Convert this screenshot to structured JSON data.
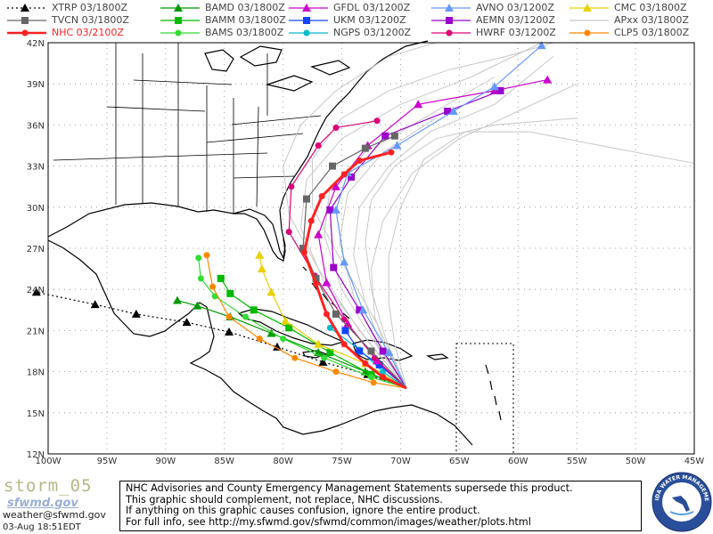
{
  "legend": [
    {
      "label": "XTRP  03/1800Z",
      "color": "#000000",
      "marker": "triangle",
      "line": "dotted"
    },
    {
      "label": "BAMD  03/1800Z",
      "color": "#009900",
      "marker": "triangle",
      "line": "solid"
    },
    {
      "label": "GFDL  03/1200Z",
      "color": "#cc00cc",
      "marker": "triangle",
      "line": "solid"
    },
    {
      "label": "AVNO  03/1200Z",
      "color": "#6699ff",
      "marker": "triangle",
      "line": "solid"
    },
    {
      "label": "CMC  03/1800Z",
      "color": "#e8d200",
      "marker": "triangle",
      "line": "solid"
    },
    {
      "label": "TVCN  03/1800Z",
      "color": "#666666",
      "marker": "square",
      "line": "solid"
    },
    {
      "label": "BAMM  03/1800Z",
      "color": "#00bb00",
      "marker": "square",
      "line": "solid"
    },
    {
      "label": "UKM  03/1200Z",
      "color": "#1144ff",
      "marker": "square",
      "line": "solid"
    },
    {
      "label": "AEMN  03/1200Z",
      "color": "#9900cc",
      "marker": "square",
      "line": "solid"
    },
    {
      "label": "APxx  03/1800Z",
      "color": "#c8c8c8",
      "marker": "none",
      "line": "solid"
    },
    {
      "label": "NHC  03/2100Z",
      "color": "#ff2222",
      "marker": "circle",
      "line": "solid"
    },
    {
      "label": "BAMS  03/1800Z",
      "color": "#33dd33",
      "marker": "circle",
      "line": "solid"
    },
    {
      "label": "NGPS  03/1200Z",
      "color": "#00bbcc",
      "marker": "circle",
      "line": "solid"
    },
    {
      "label": "HWRF  03/1200Z",
      "color": "#dd0077",
      "marker": "circle",
      "line": "solid"
    },
    {
      "label": "CLP5  03/1800Z",
      "color": "#ff8800",
      "marker": "circle",
      "line": "solid"
    }
  ],
  "axes": {
    "lon_labels": [
      "100W",
      "95W",
      "90W",
      "85W",
      "80W",
      "75W",
      "70W",
      "65W",
      "60W",
      "55W",
      "50W",
      "45W"
    ],
    "lon_values": [
      -100,
      -95,
      -90,
      -85,
      -80,
      -75,
      -70,
      -65,
      -60,
      -55,
      -50,
      -45
    ],
    "lat_labels": [
      "12N",
      "15N",
      "18N",
      "21N",
      "24N",
      "27N",
      "30N",
      "33N",
      "36N",
      "39N",
      "42N"
    ],
    "lat_values": [
      12,
      15,
      18,
      21,
      24,
      27,
      30,
      33,
      36,
      39,
      42
    ]
  },
  "tracks": [
    {
      "model": "XTRP",
      "color": "#000000",
      "dash": "2,3",
      "marker": "triangle",
      "points": [
        [
          -69.5,
          16.8
        ],
        [
          -72.8,
          17.8
        ],
        [
          -76.6,
          18.7
        ],
        [
          -80.5,
          19.8
        ],
        [
          -84.6,
          20.9
        ],
        [
          -88.2,
          21.6
        ],
        [
          -92.5,
          22.2
        ],
        [
          -96.0,
          22.9
        ],
        [
          -101,
          23.8
        ]
      ]
    },
    {
      "model": "BAMD",
      "color": "#009900",
      "marker": "triangle",
      "points": [
        [
          -69.5,
          16.8
        ],
        [
          -73,
          18
        ],
        [
          -77,
          19.4
        ],
        [
          -81,
          20.8
        ],
        [
          -84.5,
          22
        ],
        [
          -87.3,
          22.8
        ],
        [
          -89,
          23.2
        ]
      ]
    },
    {
      "model": "BAMM",
      "color": "#00bb00",
      "marker": "square",
      "points": [
        [
          -69.5,
          16.8
        ],
        [
          -72.5,
          17.8
        ],
        [
          -76,
          19.4
        ],
        [
          -79.5,
          21.2
        ],
        [
          -82.5,
          22.5
        ],
        [
          -84.5,
          23.7
        ],
        [
          -85.3,
          24.8
        ]
      ]
    },
    {
      "model": "BAMS",
      "color": "#33dd33",
      "marker": "circle",
      "points": [
        [
          -69.5,
          16.8
        ],
        [
          -72.5,
          17.6
        ],
        [
          -76.5,
          19
        ],
        [
          -80,
          20.4
        ],
        [
          -83.2,
          22
        ],
        [
          -85.8,
          23.5
        ],
        [
          -87,
          24.8
        ],
        [
          -87.2,
          26.3
        ]
      ]
    },
    {
      "model": "CLP5",
      "color": "#ff8800",
      "marker": "circle",
      "points": [
        [
          -69.5,
          16.8
        ],
        [
          -72.3,
          17.2
        ],
        [
          -75.5,
          18
        ],
        [
          -79,
          19
        ],
        [
          -82,
          20.4
        ],
        [
          -84.6,
          22
        ],
        [
          -86,
          24.2
        ],
        [
          -86.5,
          26.5
        ]
      ]
    },
    {
      "model": "CMC",
      "color": "#e8d200",
      "marker": "triangle",
      "points": [
        [
          -69.5,
          16.8
        ],
        [
          -73,
          18.6
        ],
        [
          -77,
          20
        ],
        [
          -79.8,
          21.7
        ],
        [
          -81,
          23.8
        ],
        [
          -81.8,
          25.5
        ],
        [
          -82,
          26.5
        ]
      ]
    },
    {
      "model": "NGPS",
      "color": "#00bbcc",
      "marker": "circle",
      "points": [
        [
          -69.5,
          16.8
        ],
        [
          -71.5,
          18
        ],
        [
          -73.5,
          19.6
        ],
        [
          -76,
          21.2
        ]
      ]
    },
    {
      "model": "UKM",
      "color": "#1144ff",
      "marker": "square",
      "points": [
        [
          -69.5,
          16.8
        ],
        [
          -71.8,
          18.5
        ],
        [
          -73.5,
          19.5
        ],
        [
          -74.7,
          21
        ]
      ]
    },
    {
      "model": "GFDL",
      "color": "#cc00cc",
      "marker": "triangle",
      "points": [
        [
          -69.5,
          16.8
        ],
        [
          -72,
          18.8
        ],
        [
          -74.5,
          21.5
        ],
        [
          -76.3,
          24.5
        ],
        [
          -77,
          28
        ],
        [
          -75.5,
          31.5
        ],
        [
          -72.8,
          34.5
        ],
        [
          -68.5,
          37.5
        ],
        [
          -62,
          38.5
        ],
        [
          -57.5,
          39.3
        ]
      ]
    },
    {
      "model": "AEMN",
      "color": "#9900cc",
      "marker": "square",
      "points": [
        [
          -69.5,
          16.8
        ],
        [
          -71.5,
          19.5
        ],
        [
          -73.5,
          22.5
        ],
        [
          -75.7,
          25.6
        ],
        [
          -76,
          29.8
        ],
        [
          -74.2,
          32.2
        ],
        [
          -71.3,
          35.2
        ],
        [
          -66,
          37
        ],
        [
          -61.5,
          38.5
        ]
      ]
    },
    {
      "model": "AVNO",
      "color": "#6699ff",
      "marker": "triangle",
      "points": [
        [
          -69.5,
          16.8
        ],
        [
          -71,
          19.4
        ],
        [
          -73.2,
          22.5
        ],
        [
          -74.8,
          26
        ],
        [
          -75.5,
          29.8
        ],
        [
          -74.5,
          32.5
        ],
        [
          -70.3,
          34.5
        ],
        [
          -65.5,
          37
        ],
        [
          -62,
          38.8
        ],
        [
          -58,
          41.8
        ]
      ]
    },
    {
      "model": "HWRF",
      "color": "#dd0077",
      "marker": "circle",
      "points": [
        [
          -69.5,
          16.8
        ],
        [
          -72.2,
          19
        ],
        [
          -74.8,
          21.8
        ],
        [
          -77.3,
          25
        ],
        [
          -79.5,
          28.2
        ],
        [
          -79.3,
          31.5
        ],
        [
          -77,
          34.5
        ],
        [
          -75.5,
          35.8
        ],
        [
          -72,
          36.3
        ]
      ]
    },
    {
      "model": "TVCN",
      "color": "#666666",
      "marker": "square",
      "points": [
        [
          -69.5,
          16.8
        ],
        [
          -72.5,
          19.5
        ],
        [
          -75.5,
          22.2
        ],
        [
          -77.2,
          24.8
        ],
        [
          -78.3,
          27
        ],
        [
          -78,
          30.6
        ],
        [
          -75.8,
          33
        ],
        [
          -73,
          34.3
        ],
        [
          -70.5,
          35.2
        ]
      ]
    },
    {
      "model": "NHC",
      "color": "#ff2222",
      "marker": "circle",
      "width": 3,
      "points": [
        [
          -69.5,
          16.8
        ],
        [
          -71.5,
          17.6
        ],
        [
          -73,
          18.6
        ],
        [
          -74.8,
          20
        ],
        [
          -76.3,
          22.2
        ],
        [
          -77.2,
          24.4
        ],
        [
          -78.2,
          26.7
        ],
        [
          -77.6,
          29
        ],
        [
          -76.7,
          30.8
        ],
        [
          -74.8,
          32.4
        ],
        [
          -73.5,
          33.4
        ],
        [
          -70.8,
          34
        ]
      ]
    }
  ],
  "ensemble": [
    [
      [
        -69.5,
        16.8
      ],
      [
        -73,
        20.5
      ],
      [
        -76.5,
        24.5
      ],
      [
        -78.5,
        28.5
      ],
      [
        -78,
        32
      ],
      [
        -75,
        35
      ],
      [
        -70,
        37.5
      ],
      [
        -64,
        39.5
      ],
      [
        -58,
        42
      ]
    ],
    [
      [
        -69.5,
        16.8
      ],
      [
        -72.5,
        20.5
      ],
      [
        -75,
        24
      ],
      [
        -76.5,
        28
      ],
      [
        -76,
        31.5
      ],
      [
        -73,
        34
      ],
      [
        -68,
        36.5
      ],
      [
        -62,
        39.5
      ]
    ],
    [
      [
        -69.5,
        16.8
      ],
      [
        -72,
        20
      ],
      [
        -74,
        23.5
      ],
      [
        -75.2,
        27.5
      ],
      [
        -74.5,
        31
      ],
      [
        -71.5,
        34
      ],
      [
        -67,
        36.5
      ]
    ],
    [
      [
        -69.5,
        16.8
      ],
      [
        -71.5,
        19.5
      ],
      [
        -73,
        23
      ],
      [
        -74,
        26.5
      ],
      [
        -73.5,
        30
      ],
      [
        -71,
        33
      ],
      [
        -67.5,
        35.5
      ],
      [
        -62,
        37.5
      ],
      [
        -57,
        41
      ]
    ],
    [
      [
        -69.5,
        16.8
      ],
      [
        -71,
        19
      ],
      [
        -72.2,
        22
      ],
      [
        -72.5,
        25.5
      ],
      [
        -71.5,
        29
      ],
      [
        -69,
        32.5
      ],
      [
        -65,
        35
      ],
      [
        -60,
        37
      ],
      [
        -55,
        39
      ]
    ],
    [
      [
        -69.5,
        16.8
      ],
      [
        -70.5,
        20
      ],
      [
        -71,
        23
      ],
      [
        -71,
        26.5
      ],
      [
        -70,
        30
      ],
      [
        -68,
        33.5
      ],
      [
        -64.5,
        35.5
      ],
      [
        -59,
        35.5
      ],
      [
        -53,
        34.5
      ],
      [
        -45,
        33.2
      ]
    ],
    [
      [
        -69.5,
        16.8
      ],
      [
        -73.5,
        21
      ],
      [
        -77,
        25.5
      ],
      [
        -79.5,
        29.5
      ],
      [
        -80,
        33
      ],
      [
        -78.5,
        36
      ],
      [
        -75.5,
        38.5
      ],
      [
        -71,
        41
      ],
      [
        -67,
        42
      ]
    ],
    [
      [
        -69.5,
        16.8
      ],
      [
        -72,
        21.5
      ],
      [
        -75,
        26
      ],
      [
        -77.5,
        30
      ],
      [
        -77.5,
        33.5
      ],
      [
        -75,
        36.5
      ],
      [
        -71,
        38.5
      ],
      [
        -66,
        40
      ],
      [
        -61,
        41
      ],
      [
        -57,
        42
      ]
    ],
    [
      [
        -69.5,
        16.8
      ],
      [
        -71.3,
        20.5
      ],
      [
        -72.5,
        24
      ],
      [
        -73,
        27.5
      ],
      [
        -72.5,
        30.5
      ],
      [
        -70.5,
        33
      ],
      [
        -67,
        35
      ],
      [
        -62,
        36
      ],
      [
        -55,
        36.5
      ]
    ]
  ],
  "footer": {
    "storm": "storm_05",
    "logo": "sfwmd.gov",
    "contact": "weather@sfwmd.gov",
    "timestamp": "03-Aug 18:51EDT",
    "disclaimer": [
      "NHC Advisories and County Emergency Management Statements supersede this product.",
      "This graphic should complement, not replace, NHC discussions.",
      "If anything on this graphic causes confusion, ignore the entire product.",
      "For full info, see  http://my.sfwmd.gov/sfwmd/common/images/weather/plots.html"
    ],
    "seal_text": "SOUTH FLORIDA WATER MANAGEMENT DISTRICT"
  }
}
